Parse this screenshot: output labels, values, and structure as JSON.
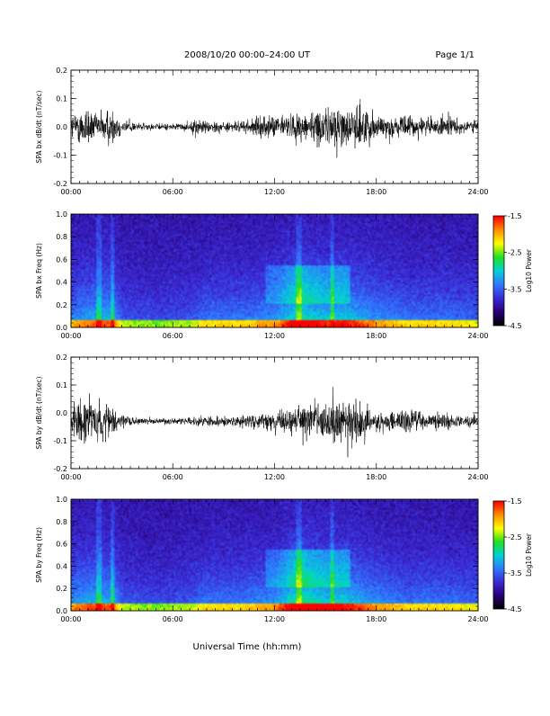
{
  "header": {
    "title": "2008/10/20  00:00–24:00 UT",
    "page_label": "Page 1/1"
  },
  "footer": {
    "xlabel": "Universal Time (hh:mm)"
  },
  "colors": {
    "trace": "#000000",
    "colormap": [
      "#000000",
      "#2a007a",
      "#3b2bd6",
      "#2f7bff",
      "#00d4d4",
      "#22e022",
      "#ffff00",
      "#ff8c00",
      "#ff0000"
    ]
  },
  "chart_data": [
    {
      "type": "line",
      "id": "bx-waveform",
      "ylabel": "SPA bx dB/dt (nT/sec)",
      "xlim": [
        "00:00",
        "24:00"
      ],
      "x_ticks": [
        "00:00",
        "06:00",
        "12:00",
        "18:00",
        "24:00"
      ],
      "ylim": [
        -0.2,
        0.2
      ],
      "y_ticks": [
        "0.2",
        "0.1",
        "0.0",
        "-0.1",
        "-0.2"
      ],
      "x_unit_hours": [
        0,
        24
      ],
      "envelope_hours": [
        0,
        0.5,
        1,
        1.5,
        2,
        2.5,
        3,
        4,
        5,
        6,
        7,
        7.5,
        8,
        9,
        10,
        11,
        12,
        13,
        14,
        15,
        15.5,
        16,
        16.5,
        17,
        17.5,
        18,
        19,
        20,
        21,
        22,
        23,
        24
      ],
      "envelope_amplitude": [
        0.08,
        0.11,
        0.14,
        0.07,
        0.12,
        0.11,
        0.05,
        0.025,
        0.02,
        0.02,
        0.025,
        0.06,
        0.04,
        0.03,
        0.035,
        0.06,
        0.07,
        0.08,
        0.1,
        0.11,
        0.15,
        0.13,
        0.1,
        0.16,
        0.11,
        0.08,
        0.06,
        0.07,
        0.055,
        0.06,
        0.05,
        0.04
      ],
      "offset": 0.0
    },
    {
      "type": "heatmap",
      "id": "bx-spectrogram",
      "ylabel": "SPA bx Freq (Hz)",
      "xlim": [
        "00:00",
        "24:00"
      ],
      "x_ticks": [
        "00:00",
        "06:00",
        "12:00",
        "18:00",
        "24:00"
      ],
      "ylim": [
        0.0,
        1.0
      ],
      "y_ticks": [
        "1.0",
        "0.8",
        "0.6",
        "0.4",
        "0.2",
        "0.0"
      ],
      "colorbar": {
        "label": "Log10 Power",
        "range": [
          -4.5,
          -1.5
        ],
        "ticks": [
          "-1.5",
          "-2.5",
          "-3.5",
          "-4.5"
        ]
      },
      "activity_hours": [
        0,
        1,
        2,
        2.5,
        3,
        5,
        7,
        8,
        10,
        12,
        13,
        13.5,
        14,
        15,
        16,
        17,
        18,
        19,
        20,
        22,
        24
      ],
      "activity_level": [
        0.45,
        0.55,
        0.6,
        0.55,
        0.3,
        0.25,
        0.3,
        0.4,
        0.4,
        0.5,
        0.7,
        0.85,
        0.75,
        0.65,
        0.7,
        0.6,
        0.5,
        0.45,
        0.4,
        0.4,
        0.35
      ]
    },
    {
      "type": "line",
      "id": "by-waveform",
      "ylabel": "SPA by dB/dt (nT/sec)",
      "xlim": [
        "00:00",
        "24:00"
      ],
      "x_ticks": [
        "00:00",
        "06:00",
        "12:00",
        "18:00",
        "24:00"
      ],
      "ylim": [
        -0.2,
        0.2
      ],
      "y_ticks": [
        "0.2",
        "0.1",
        "0.0",
        "-0.1",
        "-0.2"
      ],
      "envelope_hours": [
        0,
        0.5,
        1,
        1.5,
        2,
        2.5,
        3,
        4,
        5,
        6,
        7,
        7.5,
        8,
        9,
        10,
        11,
        12,
        13,
        14,
        15,
        15.5,
        16,
        16.5,
        17,
        17.5,
        18,
        19,
        20,
        21,
        22,
        23,
        24
      ],
      "envelope_amplitude": [
        0.09,
        0.14,
        0.16,
        0.1,
        0.12,
        0.08,
        0.04,
        0.02,
        0.02,
        0.02,
        0.025,
        0.04,
        0.035,
        0.03,
        0.035,
        0.05,
        0.06,
        0.08,
        0.11,
        0.13,
        0.17,
        0.14,
        0.12,
        0.16,
        0.1,
        0.06,
        0.06,
        0.07,
        0.05,
        0.05,
        0.04,
        0.04
      ],
      "offset": -0.03
    },
    {
      "type": "heatmap",
      "id": "by-spectrogram",
      "ylabel": "SPA by Freq (Hz)",
      "xlim": [
        "00:00",
        "24:00"
      ],
      "x_ticks": [
        "00:00",
        "06:00",
        "12:00",
        "18:00",
        "24:00"
      ],
      "ylim": [
        0.0,
        1.0
      ],
      "y_ticks": [
        "1.0",
        "0.8",
        "0.6",
        "0.4",
        "0.2",
        "0.0"
      ],
      "colorbar": {
        "label": "Log10 Power",
        "range": [
          -4.5,
          -1.5
        ],
        "ticks": [
          "-1.5",
          "-2.5",
          "-3.5",
          "-4.5"
        ]
      },
      "activity_hours": [
        0,
        1,
        2,
        2.5,
        3,
        5,
        7,
        8,
        10,
        12,
        13,
        13.5,
        14,
        15,
        16,
        17,
        18,
        19,
        20,
        22,
        24
      ],
      "activity_level": [
        0.5,
        0.6,
        0.6,
        0.55,
        0.3,
        0.25,
        0.3,
        0.4,
        0.4,
        0.5,
        0.75,
        0.9,
        0.8,
        0.7,
        0.72,
        0.6,
        0.5,
        0.45,
        0.4,
        0.4,
        0.35
      ]
    }
  ]
}
